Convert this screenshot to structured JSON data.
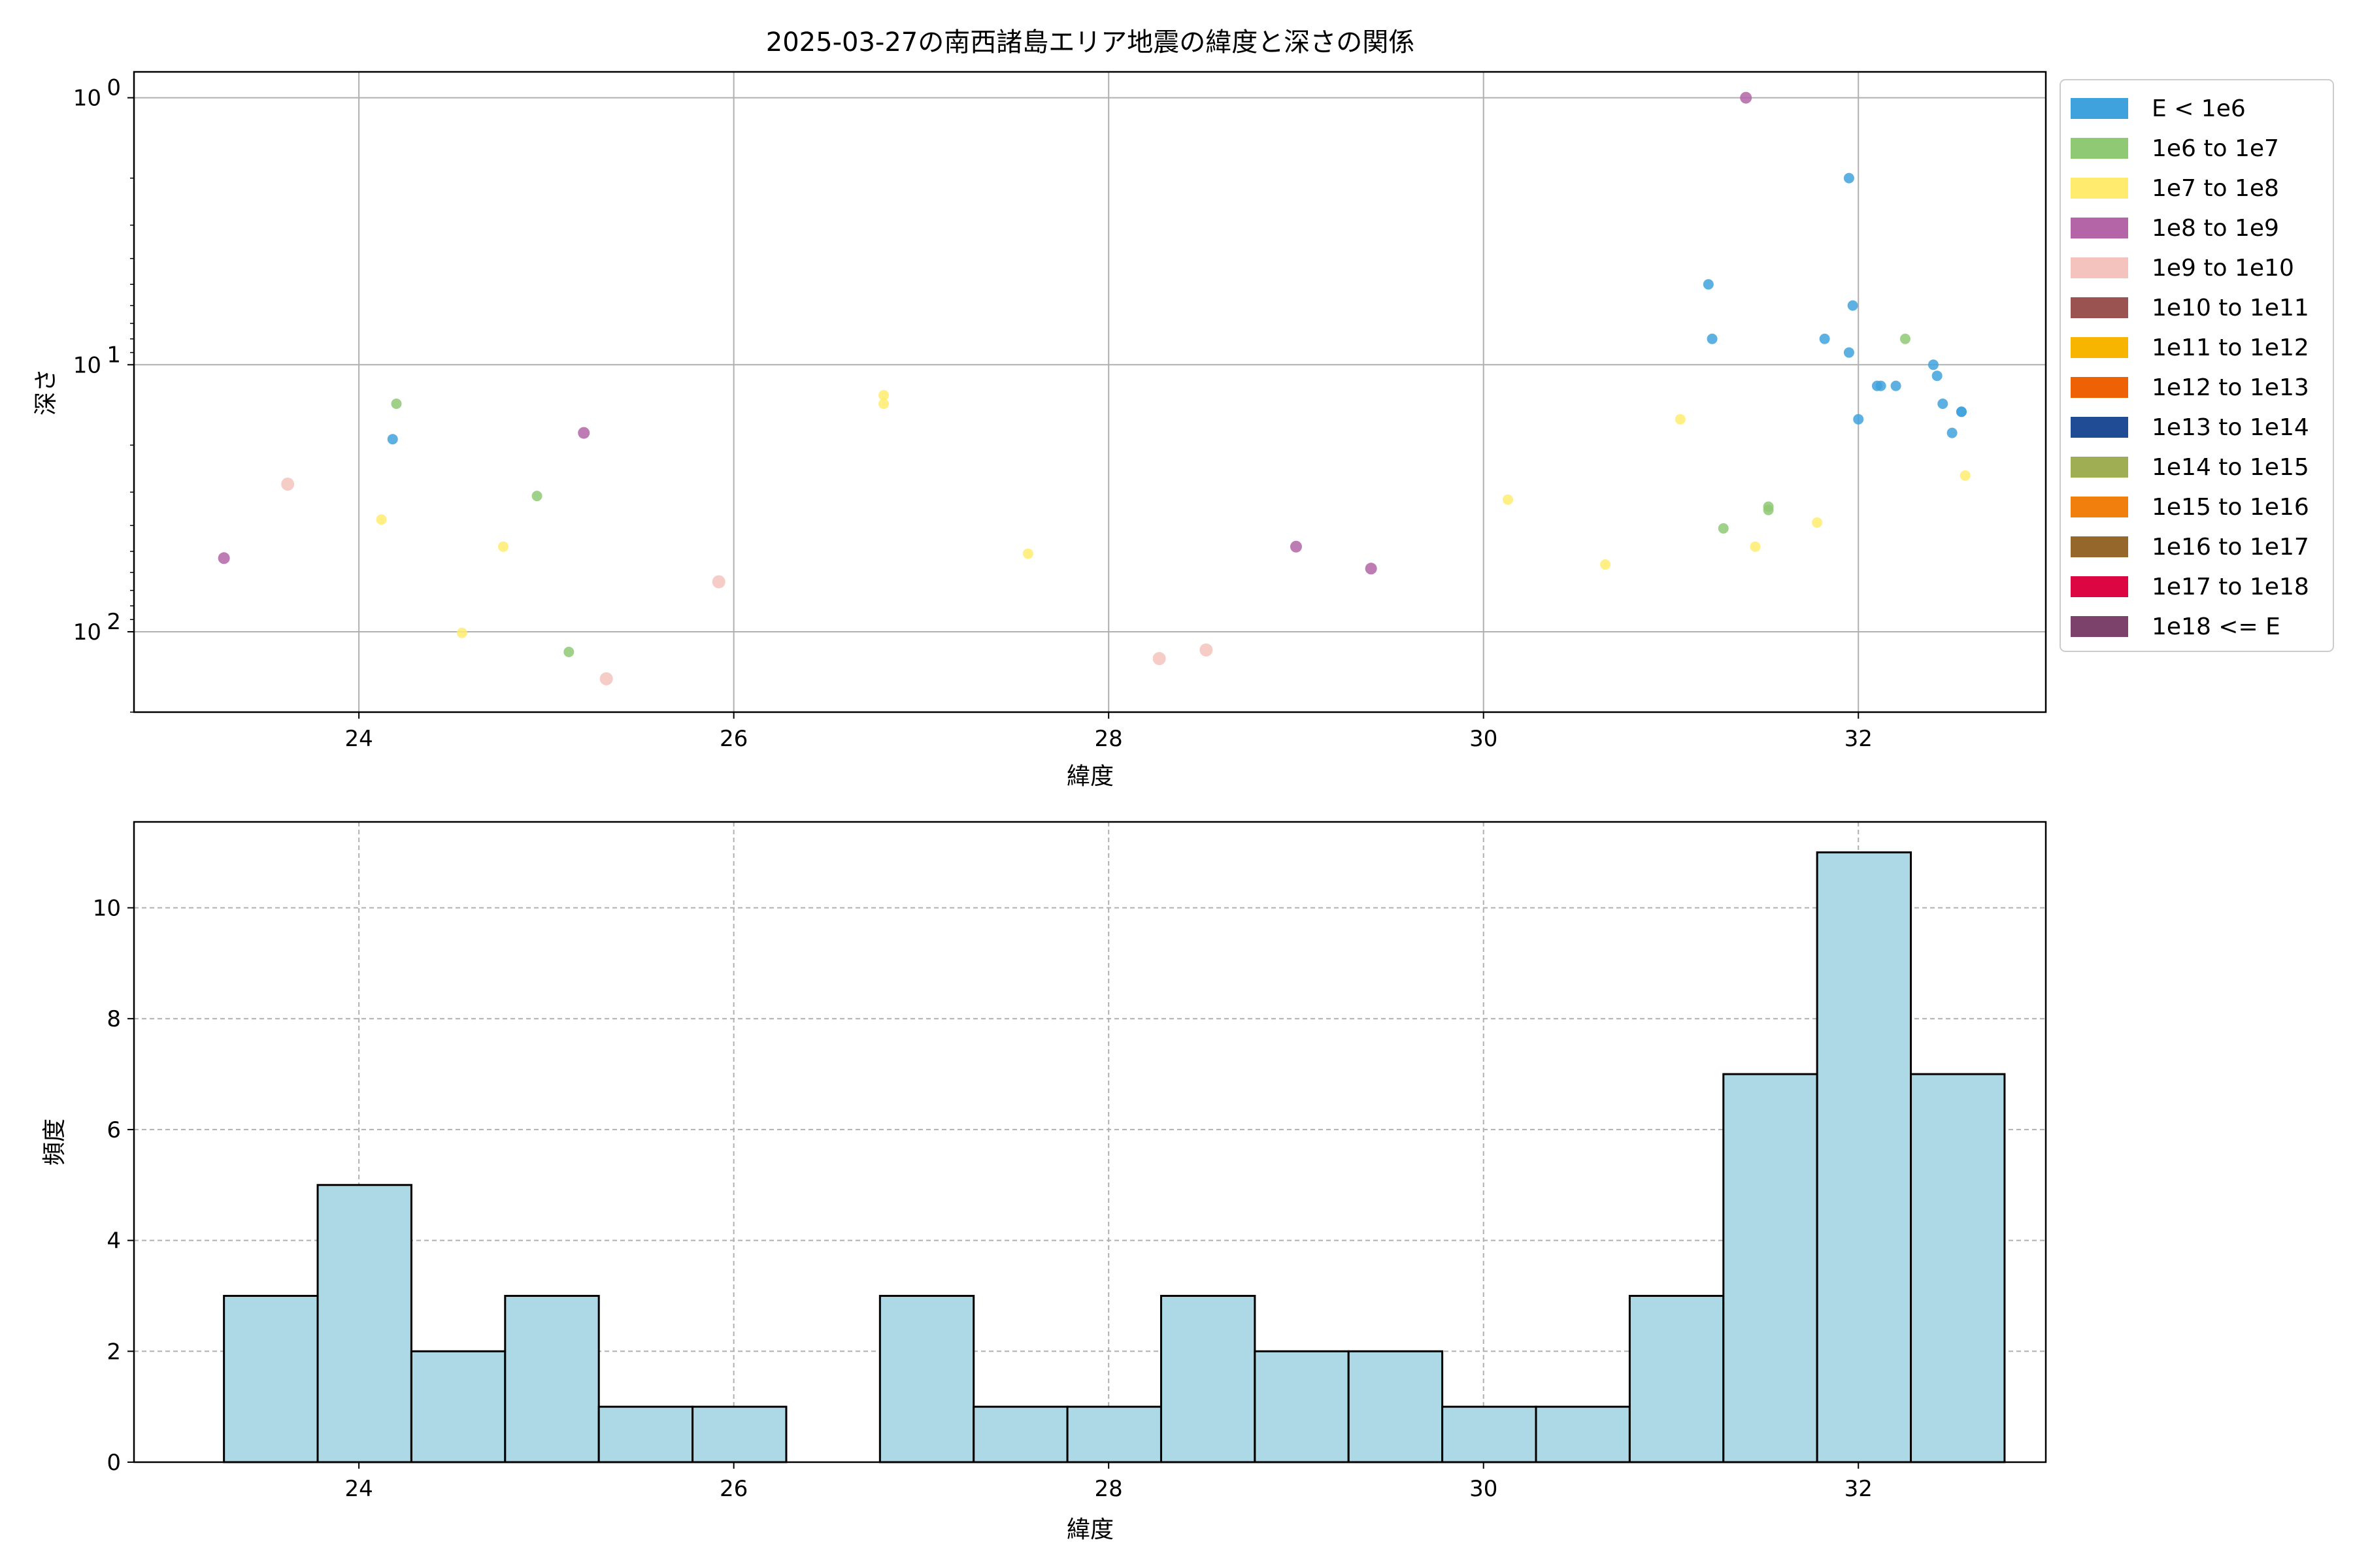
{
  "title": "2025-03-27の南西諸島エリア地震の緯度と深さの関係",
  "chart_data": [
    {
      "type": "scatter",
      "xlabel": "緯度",
      "ylabel": "深さ",
      "xlim": [
        22.8,
        33.0
      ],
      "ylim": [
        200,
        0.8
      ],
      "yscale": "log",
      "y_inverted": true,
      "x_ticks": [
        "24",
        "26",
        "28",
        "30",
        "32"
      ],
      "x_tick_values": [
        24,
        26,
        28,
        30,
        32
      ],
      "y_ticks": [
        "10",
        "10",
        "10"
      ],
      "y_tick_exponents": [
        "0",
        "1",
        "2"
      ],
      "y_tick_values": [
        1,
        10,
        100
      ],
      "grid": true,
      "legend_position": "outside-right",
      "legend": [
        {
          "label": "E < 1e6",
          "color": "#3fa2dd"
        },
        {
          "label": "1e6 to 1e7",
          "color": "#8fc974"
        },
        {
          "label": "1e7 to 1e8",
          "color": "#ffec6e"
        },
        {
          "label": "1e8 to 1e9",
          "color": "#b365a8"
        },
        {
          "label": "1e9 to 1e10",
          "color": "#f5c3bd"
        },
        {
          "label": "1e10 to 1e11",
          "color": "#9b5352"
        },
        {
          "label": "1e11 to 1e12",
          "color": "#f7b500"
        },
        {
          "label": "1e12 to 1e13",
          "color": "#ee6205"
        },
        {
          "label": "1e13 to 1e14",
          "color": "#1f4c95"
        },
        {
          "label": "1e14 to 1e15",
          "color": "#a0ae53"
        },
        {
          "label": "1e15 to 1e16",
          "color": "#f07f0e"
        },
        {
          "label": "1e16 to 1e17",
          "color": "#95672b"
        },
        {
          "label": "1e17 to 1e18",
          "color": "#dc0642"
        },
        {
          "label": "1e18 <= E",
          "color": "#7d426b"
        }
      ],
      "series": [
        {
          "class": 0,
          "points": [
            [
              24.18,
              19
            ],
            [
              31.2,
              5
            ],
            [
              31.22,
              8
            ],
            [
              31.95,
              2
            ],
            [
              31.97,
              6
            ],
            [
              31.82,
              8
            ],
            [
              31.95,
              9
            ],
            [
              32.1,
              12
            ],
            [
              32.12,
              12
            ],
            [
              32.2,
              12
            ],
            [
              32.0,
              16
            ],
            [
              32.4,
              10
            ],
            [
              32.42,
              11
            ],
            [
              32.45,
              14
            ],
            [
              32.55,
              15
            ],
            [
              32.55,
              15
            ],
            [
              32.5,
              18
            ]
          ]
        },
        {
          "class": 1,
          "points": [
            [
              24.2,
              14
            ],
            [
              24.95,
              31
            ],
            [
              25.12,
              119
            ],
            [
              31.28,
              41
            ],
            [
              31.52,
              35
            ],
            [
              31.52,
              34
            ],
            [
              32.25,
              8
            ]
          ]
        },
        {
          "class": 2,
          "points": [
            [
              24.12,
              38
            ],
            [
              24.55,
              101
            ],
            [
              24.77,
              48
            ],
            [
              26.8,
              13
            ],
            [
              26.8,
              14
            ],
            [
              27.57,
              51
            ],
            [
              30.13,
              32
            ],
            [
              30.65,
              56
            ],
            [
              31.05,
              16
            ],
            [
              31.45,
              48
            ],
            [
              31.78,
              39
            ],
            [
              32.57,
              26
            ]
          ]
        },
        {
          "class": 3,
          "points": [
            [
              23.28,
              53
            ],
            [
              25.2,
              18
            ],
            [
              29.0,
              48
            ],
            [
              29.4,
              58
            ],
            [
              31.4,
              1
            ]
          ]
        },
        {
          "class": 4,
          "points": [
            [
              23.62,
              28
            ],
            [
              25.32,
              150
            ],
            [
              25.92,
              65
            ],
            [
              28.27,
              126
            ],
            [
              28.52,
              117
            ]
          ]
        }
      ]
    },
    {
      "type": "bar",
      "subtype": "histogram",
      "xlabel": "緯度",
      "ylabel": "頻度",
      "xlim": [
        22.8,
        33.0
      ],
      "ylim": [
        0,
        11.55
      ],
      "x_ticks": [
        "24",
        "26",
        "28",
        "30",
        "32"
      ],
      "x_tick_values": [
        24,
        26,
        28,
        30,
        32
      ],
      "y_ticks": [
        "0",
        "2",
        "4",
        "6",
        "8",
        "10"
      ],
      "y_tick_values": [
        0,
        2,
        4,
        6,
        8,
        10
      ],
      "grid": true,
      "bar_color": "#add8e6",
      "bin_start": 23.28,
      "bin_width": 0.5,
      "values": [
        3,
        5,
        2,
        3,
        1,
        1,
        0,
        3,
        1,
        1,
        3,
        2,
        2,
        1,
        1,
        3,
        7,
        11,
        7
      ]
    }
  ]
}
